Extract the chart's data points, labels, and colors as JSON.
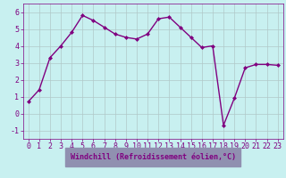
{
  "x": [
    0,
    1,
    2,
    3,
    4,
    5,
    6,
    7,
    8,
    9,
    10,
    11,
    12,
    13,
    14,
    15,
    16,
    17,
    18,
    19,
    20,
    21,
    22,
    23
  ],
  "y": [
    0.7,
    1.4,
    3.3,
    4.0,
    4.8,
    5.8,
    5.5,
    5.1,
    4.7,
    4.5,
    4.4,
    4.7,
    5.6,
    5.7,
    5.1,
    4.5,
    3.9,
    4.0,
    -0.7,
    0.9,
    2.7,
    2.9,
    2.9,
    2.85
  ],
  "line_color": "#800080",
  "marker_color": "#800080",
  "bg_color": "#c8f0f0",
  "grid_color": "#b0c8c8",
  "xlabel": "Windchill (Refroidissement éolien,°C)",
  "xlabel_bg": "#9090b0",
  "xlabel_text_color": "#800080",
  "xlim_left": -0.5,
  "xlim_right": 23.5,
  "ylim": [
    -1.5,
    6.5
  ],
  "yticks": [
    -1,
    0,
    1,
    2,
    3,
    4,
    5,
    6
  ],
  "xticks": [
    0,
    1,
    2,
    3,
    4,
    5,
    6,
    7,
    8,
    9,
    10,
    11,
    12,
    13,
    14,
    15,
    16,
    17,
    18,
    19,
    20,
    21,
    22,
    23
  ],
  "xlabel_fontsize": 6,
  "tick_fontsize": 6,
  "line_width": 1.0,
  "marker_size": 2.0,
  "axis_label_color": "#800080"
}
